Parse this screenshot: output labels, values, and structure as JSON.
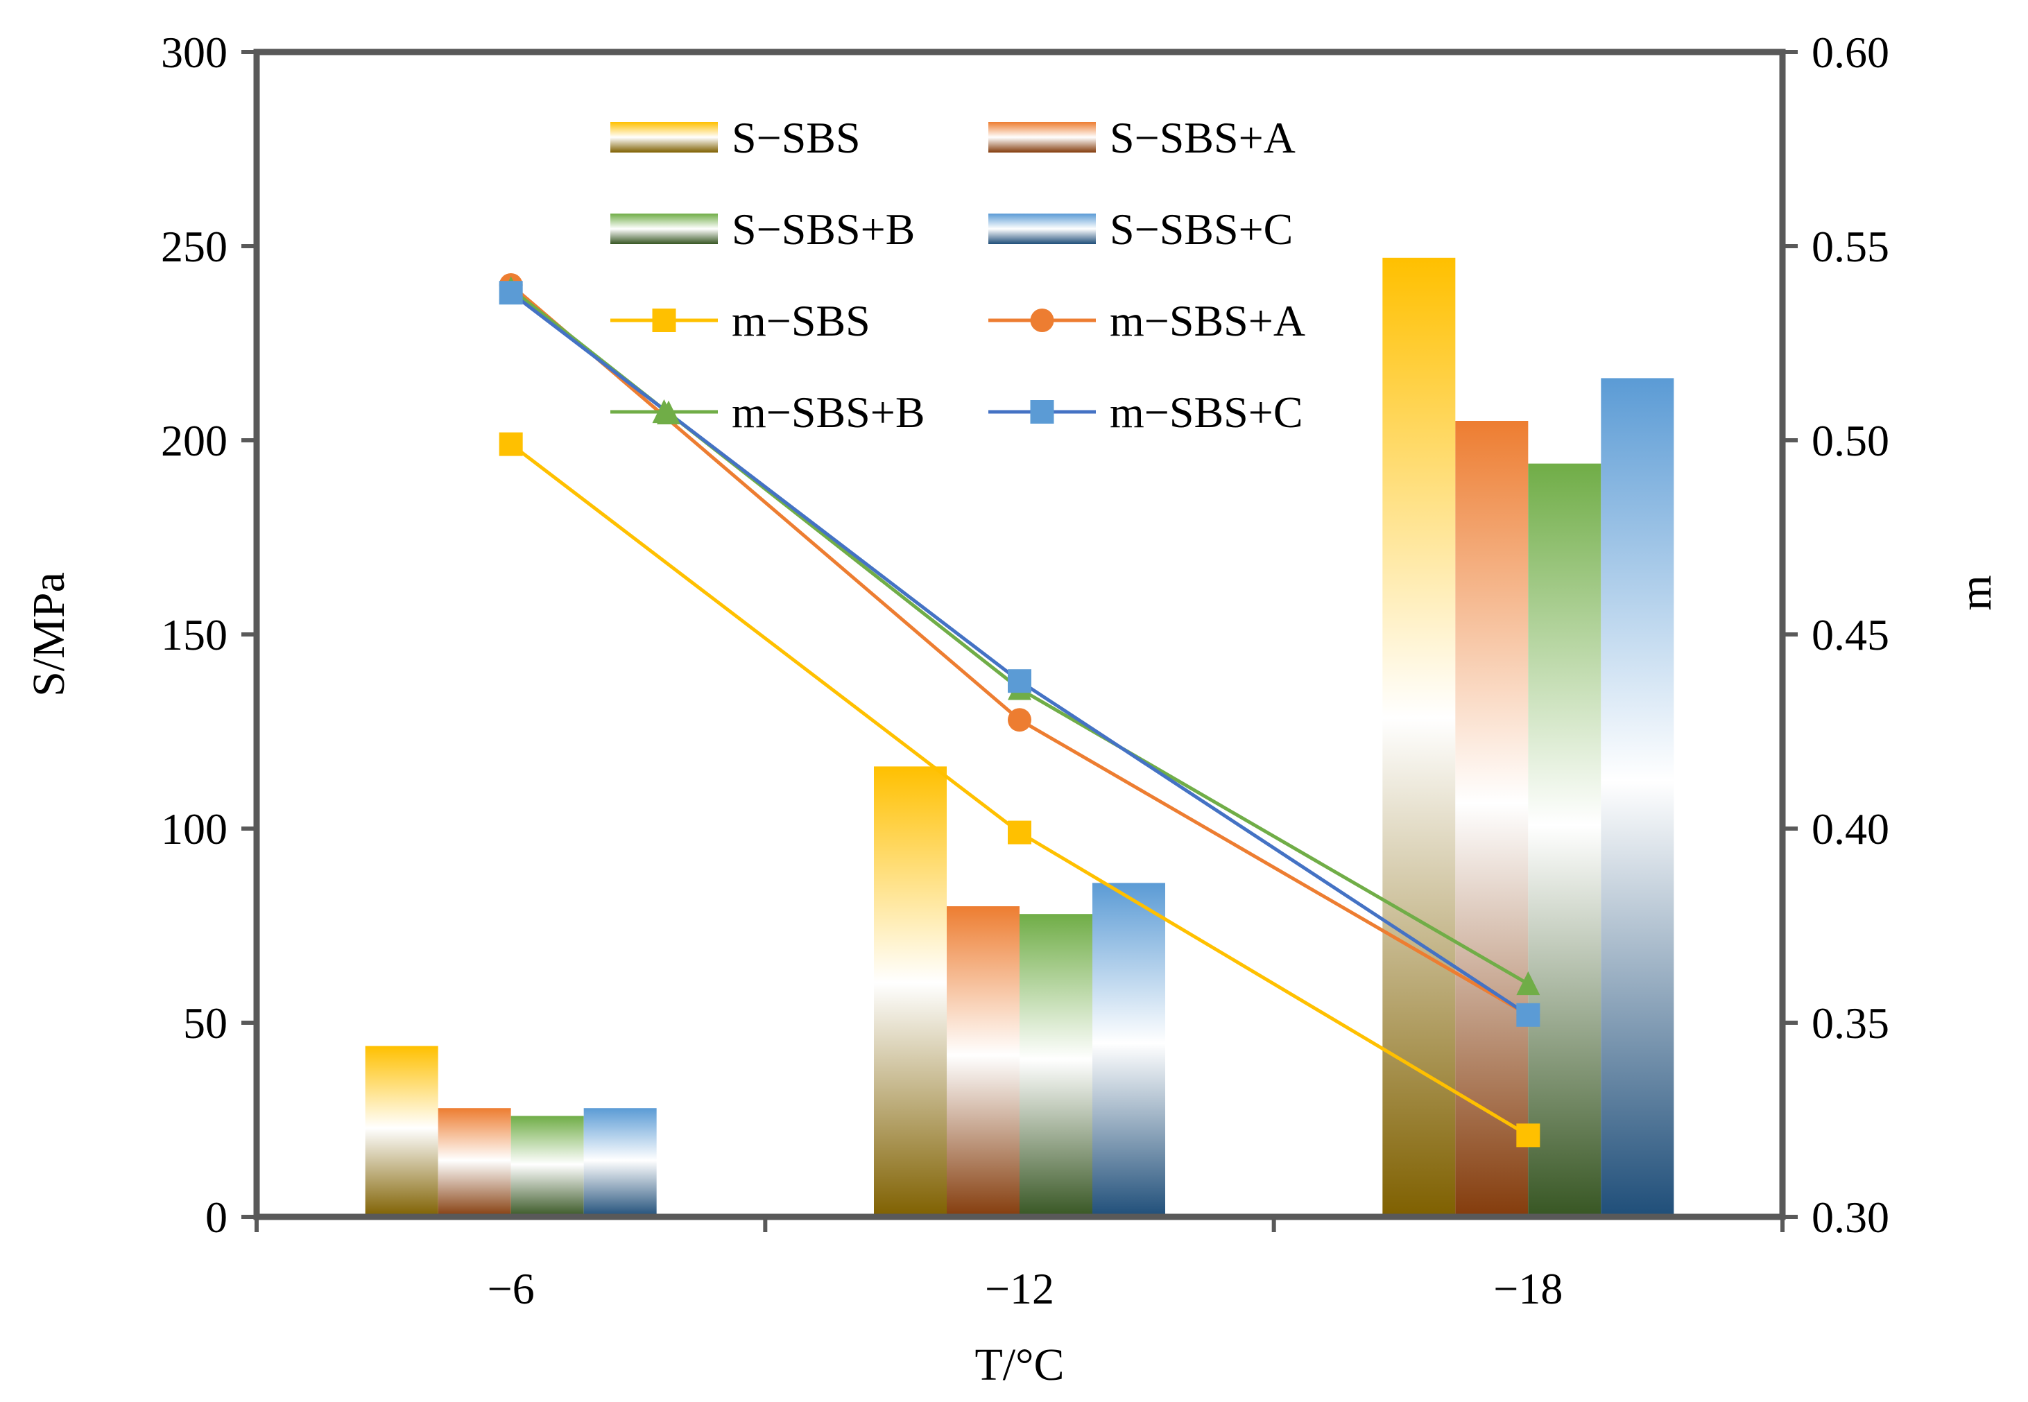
{
  "chart_data": {
    "type": "bar",
    "title": "",
    "xlabel": "T/°C",
    "ylabel": "S/MPa",
    "y2label": "m",
    "categories": [
      "−6",
      "−12",
      "−18"
    ],
    "ylim": [
      0,
      300
    ],
    "yticks": [
      "0",
      "50",
      "100",
      "150",
      "200",
      "250",
      "300"
    ],
    "y2lim": [
      0.3,
      0.6
    ],
    "y2ticks": [
      "0.30",
      "0.35",
      "0.40",
      "0.45",
      "0.50",
      "0.55",
      "0.60"
    ],
    "bar_series": [
      {
        "name": "S−SBS",
        "values": [
          44,
          116,
          247
        ],
        "color": "#FFC000",
        "color_dark": "#7F6000"
      },
      {
        "name": "S−SBS+A",
        "values": [
          28,
          80,
          205
        ],
        "color": "#ED7D31",
        "color_dark": "#843C0C"
      },
      {
        "name": "S−SBS+B",
        "values": [
          26,
          78,
          194
        ],
        "color": "#70AD47",
        "color_dark": "#375623"
      },
      {
        "name": "S−SBS+C",
        "values": [
          28,
          86,
          216
        ],
        "color": "#5B9BD5",
        "color_dark": "#1F4E79"
      }
    ],
    "line_series": [
      {
        "name": "m−SBS",
        "marker": "square",
        "color": "#FFC000",
        "points": [
          [
            0,
            0.499
          ],
          [
            1,
            0.399
          ],
          [
            2,
            0.321
          ]
        ]
      },
      {
        "name": "m−SBS+A",
        "marker": "circle",
        "color": "#ED7D31",
        "points": [
          [
            0,
            0.54
          ],
          [
            1,
            0.428
          ],
          [
            2,
            0.352
          ]
        ]
      },
      {
        "name": "m−SBS+B",
        "marker": "triangle",
        "color": "#70AD47",
        "points": [
          [
            0,
            0.539
          ],
          [
            0.31,
            0.507
          ],
          [
            1,
            0.436
          ],
          [
            2,
            0.36
          ]
        ]
      },
      {
        "name": "m−SBS+C",
        "marker": "square",
        "color": "#5B9BD5",
        "line_color": "#4472C4",
        "points": [
          [
            0,
            0.538
          ],
          [
            1,
            0.438
          ],
          [
            2,
            0.352
          ]
        ]
      }
    ],
    "legend_position": "top-left-inside"
  }
}
